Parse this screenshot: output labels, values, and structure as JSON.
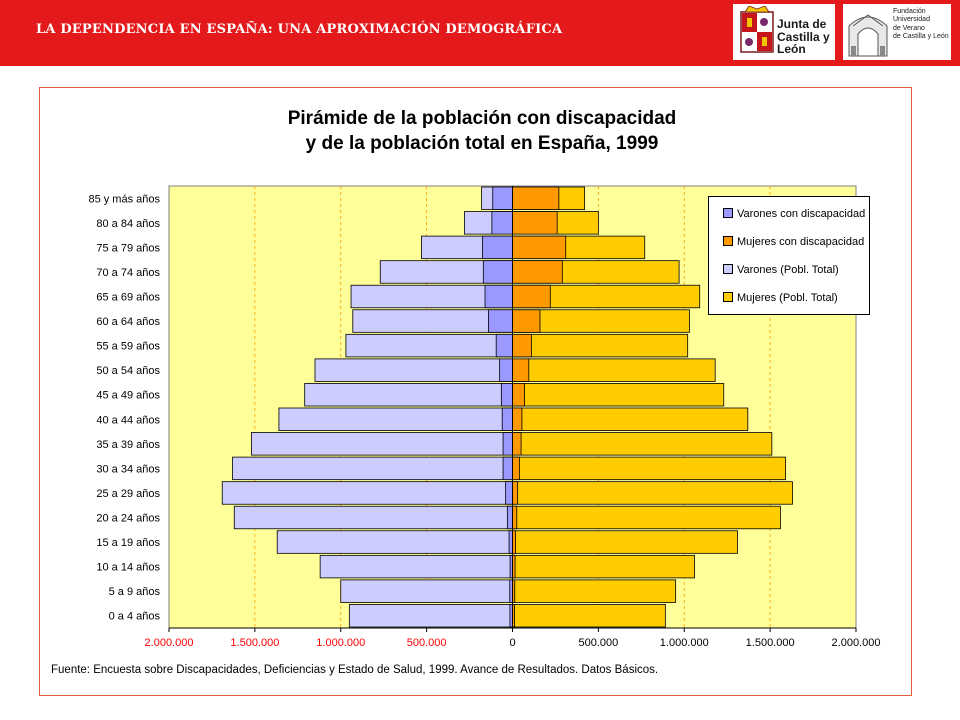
{
  "header": {
    "title": "LA DEPENDENCIA EN ESPAÑA: UNA APROXIMACIÓN DEMOGRÁFICA",
    "logo1_text": [
      "Junta de",
      "Castilla y León"
    ],
    "logo2_text": [
      "Fundación",
      "Universidad",
      "de Verano",
      "de Castilla y León"
    ]
  },
  "chart_data": {
    "type": "bar",
    "orientation": "horizontal",
    "title": [
      "Pirámide de la población con discapacidad",
      "y de la población total en España, 1999"
    ],
    "categories": [
      "0 a 4 años",
      "5 a 9 años",
      "10 a 14 años",
      "15 a 19 años",
      "20 a 24 años",
      "25 a 29 años",
      "30 a 34 años",
      "35 a 39 años",
      "40 a 44 años",
      "45 a 49 años",
      "50 a 54 años",
      "55 a 59 años",
      "60 a 64 años",
      "65 a 69 años",
      "70 a 74 años",
      "75 a 79 años",
      "80 a 84 años",
      "85 y más años"
    ],
    "series": [
      {
        "name": "Varones (Pobl. Total)",
        "color": "#ccccff",
        "values": [
          -950000,
          -1000000,
          -1120000,
          -1370000,
          -1620000,
          -1690000,
          -1630000,
          -1520000,
          -1360000,
          -1210000,
          -1150000,
          -970000,
          -930000,
          -940000,
          -770000,
          -530000,
          -280000,
          -180000
        ]
      },
      {
        "name": "Mujeres (Pobl. Total)",
        "color": "#ffcc00",
        "values": [
          890000,
          950000,
          1060000,
          1310000,
          1560000,
          1630000,
          1590000,
          1510000,
          1370000,
          1230000,
          1180000,
          1020000,
          1030000,
          1090000,
          970000,
          770000,
          500000,
          420000
        ]
      },
      {
        "name": "Varones con discapacidad",
        "color": "#9999ff",
        "values": [
          -15000,
          -16000,
          -14000,
          -20000,
          -30000,
          -40000,
          -55000,
          -55000,
          -60000,
          -65000,
          -75000,
          -95000,
          -140000,
          -160000,
          -170000,
          -175000,
          -120000,
          -115000
        ]
      },
      {
        "name": "Mujeres con discapacidad",
        "color": "#ff9900",
        "values": [
          12000,
          13000,
          15000,
          18000,
          25000,
          30000,
          40000,
          50000,
          55000,
          70000,
          95000,
          110000,
          160000,
          220000,
          290000,
          310000,
          260000,
          270000
        ]
      }
    ],
    "legend_order": [
      "Varones con discapacidad",
      "Mujeres con discapacidad",
      "Varones (Pobl. Total)",
      "Mujeres (Pobl. Total)"
    ],
    "xlim": [
      -2000000,
      2000000
    ],
    "xticks": [
      -2000000,
      -1500000,
      -1000000,
      -500000,
      0,
      500000,
      1000000,
      1500000,
      2000000
    ],
    "xtick_labels": [
      "2.000.000",
      "1.500.000",
      "1.000.000",
      "500.000",
      "0",
      "500.000",
      "1.000.000",
      "1.500.000",
      "2.000.000"
    ],
    "neg_tick_color": "#ff0000",
    "pos_tick_color": "#000000",
    "plot_background": "#ffff99",
    "grid": true,
    "legend_placement": "top-right"
  },
  "source": "Fuente: Encuesta sobre Discapacidades, Deficiencias y Estado de Salud, 1999. Avance de Resultados. Datos Básicos.",
  "colors": {
    "header_bg": "#e3191c",
    "frame_border": "#e35a3c"
  }
}
